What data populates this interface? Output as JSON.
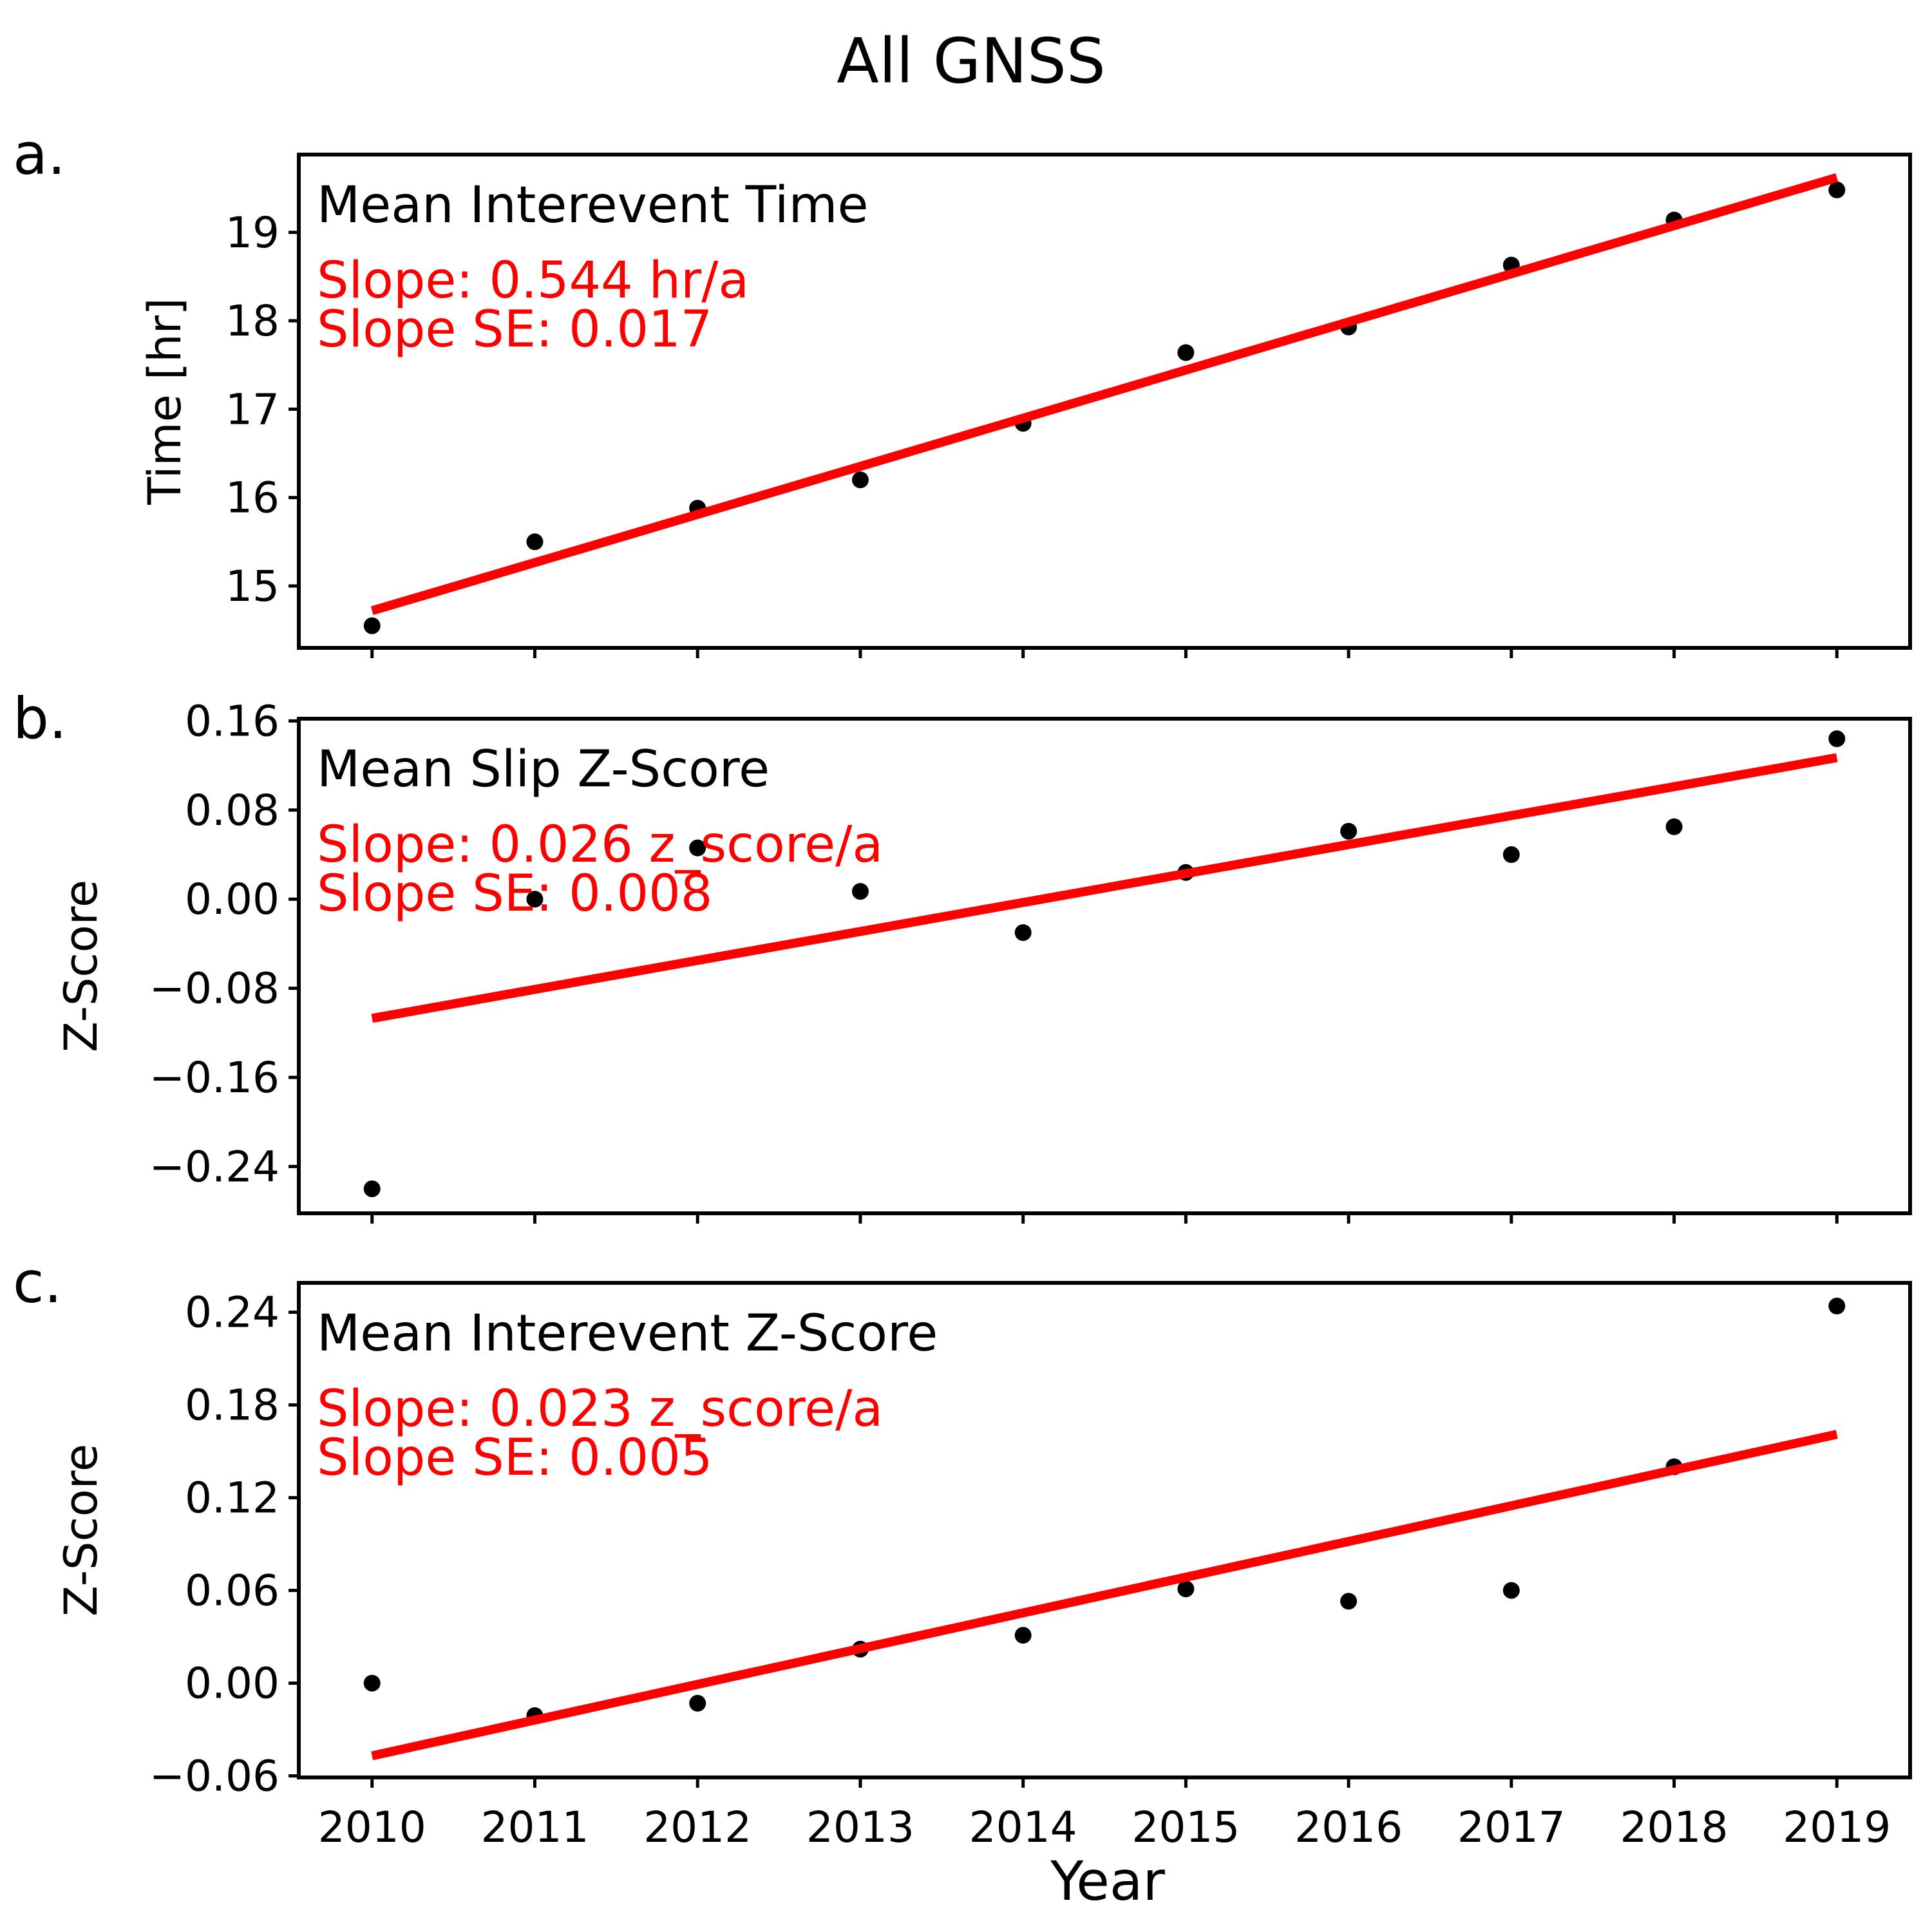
{
  "figure": {
    "title": "All GNSS",
    "xlabel": "Year"
  },
  "colors": {
    "points": "#000000",
    "fit_line": "#ff0000",
    "annotation": "#ff0000",
    "axes": "#000000"
  },
  "chart_data": [
    {
      "type": "scatter",
      "panel_label": "a.",
      "subtitle": "Mean Interevent Time",
      "annotations": [
        "Slope: 0.544 hr/a",
        "Slope SE: 0.017"
      ],
      "ylabel": "Time [hr]",
      "xlim": [
        2009.55,
        2019.45
      ],
      "ylim": [
        14.3,
        19.88
      ],
      "yticks": [
        15,
        16,
        17,
        18,
        19
      ],
      "ytick_labels": [
        "15",
        "16",
        "17",
        "18",
        "19"
      ],
      "xticks": [
        2010,
        2011,
        2012,
        2013,
        2014,
        2015,
        2016,
        2017,
        2018,
        2019
      ],
      "xtick_labels": [],
      "x": [
        2010,
        2011,
        2012,
        2013,
        2014,
        2015,
        2016,
        2017,
        2018,
        2019
      ],
      "y": [
        14.55,
        15.5,
        15.88,
        16.2,
        16.84,
        17.64,
        17.93,
        18.63,
        19.14,
        19.48
      ],
      "fit": {
        "x": [
          2010,
          2019
        ],
        "y": [
          14.72,
          19.62
        ]
      }
    },
    {
      "type": "scatter",
      "panel_label": "b.",
      "subtitle": "Mean Slip Z-Score",
      "annotations": [
        "Slope: 0.026 z_score/a",
        "Slope SE: 0.008"
      ],
      "ylabel": "Z-Score",
      "xlim": [
        2009.55,
        2019.45
      ],
      "ylim": [
        -0.282,
        0.162
      ],
      "yticks": [
        -0.24,
        -0.16,
        -0.08,
        0.0,
        0.08,
        0.16
      ],
      "ytick_labels": [
        "−0.24",
        "−0.16",
        "−0.08",
        "0.00",
        "0.08",
        "0.16"
      ],
      "xticks": [
        2010,
        2011,
        2012,
        2013,
        2014,
        2015,
        2016,
        2017,
        2018,
        2019
      ],
      "xtick_labels": [],
      "x": [
        2010,
        2011,
        2012,
        2013,
        2014,
        2015,
        2016,
        2017,
        2018,
        2019
      ],
      "y": [
        -0.26,
        0.0,
        0.046,
        0.007,
        -0.03,
        0.024,
        0.061,
        0.04,
        0.065,
        0.144
      ],
      "fit": {
        "x": [
          2010,
          2019
        ],
        "y": [
          -0.107,
          0.127
        ]
      }
    },
    {
      "type": "scatter",
      "panel_label": "c.",
      "subtitle": "Mean Interevent Z-Score",
      "annotations": [
        "Slope: 0.023 z_score/a",
        "Slope SE: 0.005"
      ],
      "ylabel": "Z-Score",
      "xlim": [
        2009.55,
        2019.45
      ],
      "ylim": [
        -0.061,
        0.259
      ],
      "yticks": [
        -0.06,
        0.0,
        0.06,
        0.12,
        0.18,
        0.24
      ],
      "ytick_labels": [
        "−0.06",
        "0.00",
        "0.06",
        "0.12",
        "0.18",
        "0.24"
      ],
      "xticks": [
        2010,
        2011,
        2012,
        2013,
        2014,
        2015,
        2016,
        2017,
        2018,
        2019
      ],
      "xtick_labels": [
        "2010",
        "2011",
        "2012",
        "2013",
        "2014",
        "2015",
        "2016",
        "2017",
        "2018",
        "2019"
      ],
      "x": [
        2010,
        2011,
        2012,
        2013,
        2014,
        2015,
        2016,
        2017,
        2018,
        2019
      ],
      "y": [
        0.0,
        -0.021,
        -0.013,
        0.022,
        0.031,
        0.061,
        0.053,
        0.06,
        0.14,
        0.244
      ],
      "fit": {
        "x": [
          2010,
          2019
        ],
        "y": [
          -0.047,
          0.161
        ]
      }
    }
  ]
}
